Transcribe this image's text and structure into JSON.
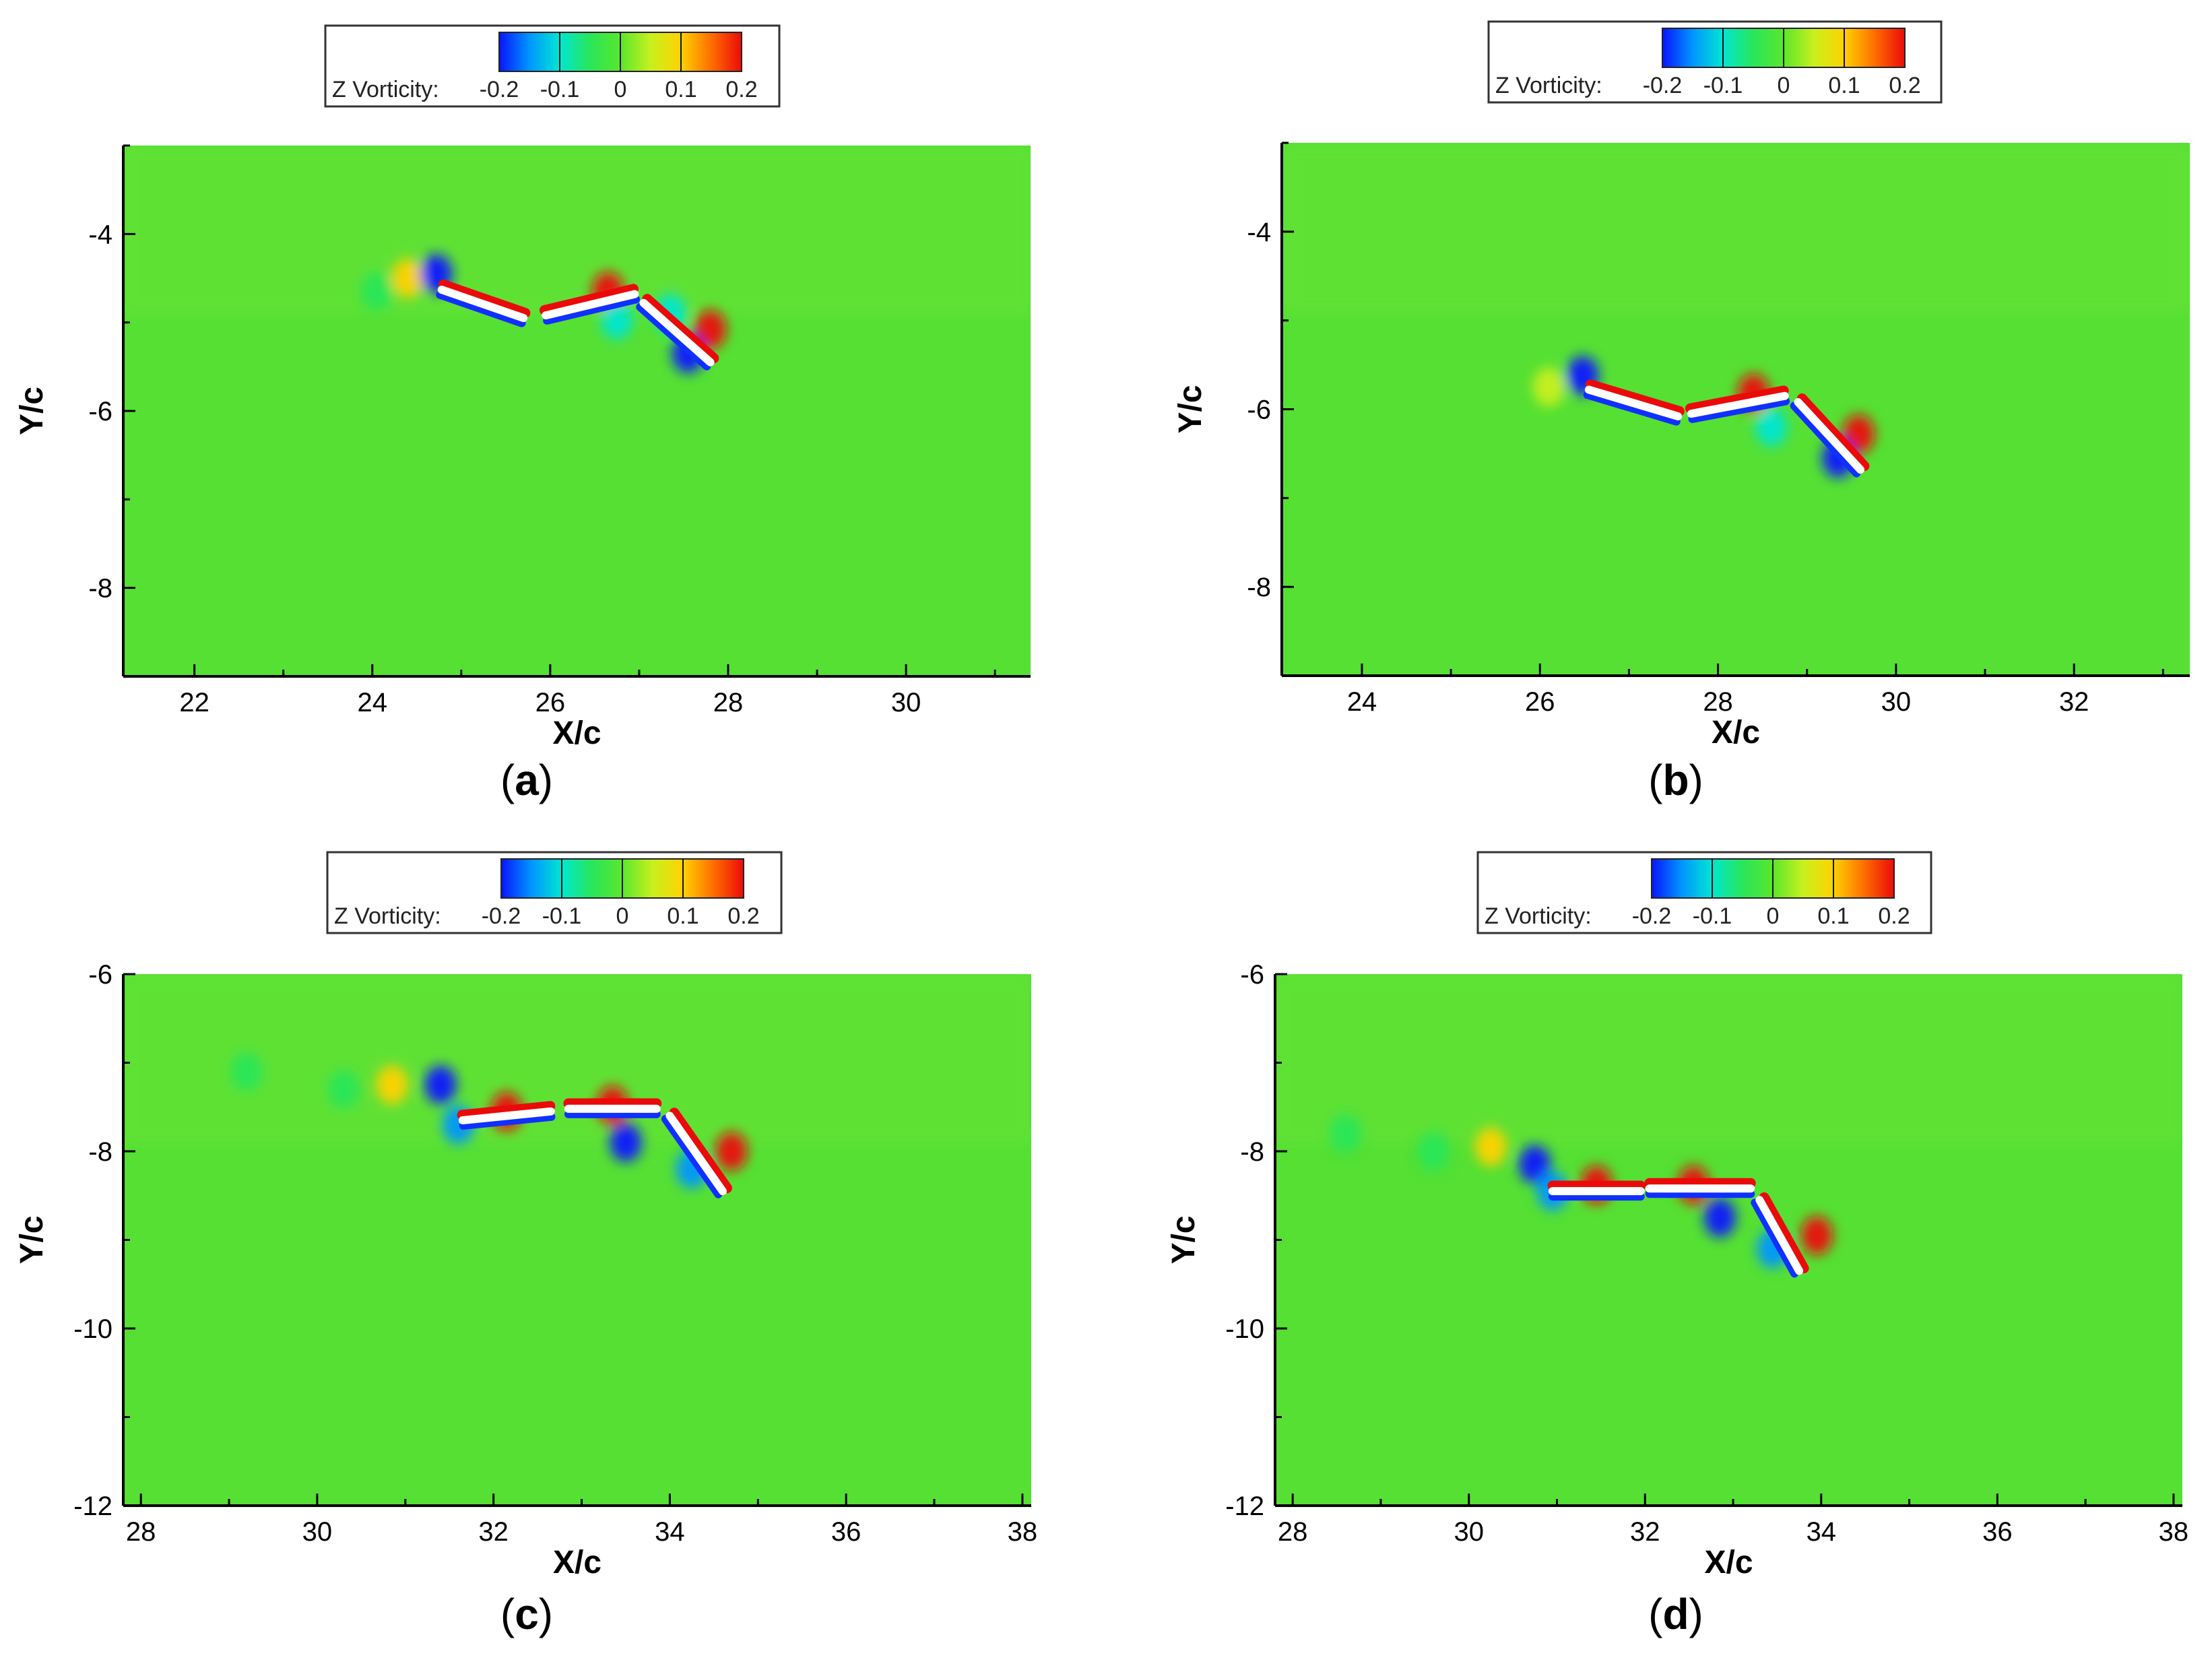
{
  "figure": {
    "colormap": [
      "#0a14ff",
      "#0096ff",
      "#00e6d2",
      "#28e65a",
      "#5ae62d",
      "#c8f01e",
      "#ffd200",
      "#ff6e00",
      "#eb0a0a"
    ],
    "background_color": "#55e033"
  },
  "chart_data": [
    {
      "type": "heatmap",
      "panel_label": "a",
      "xlabel": "X/c",
      "ylabel": "Y/c",
      "xlim": [
        21.2,
        31.4
      ],
      "ylim": [
        -9.0,
        -3.0
      ],
      "xticks": [
        "22",
        "24",
        "26",
        "28",
        "30"
      ],
      "yticks": [
        "-4",
        "-6",
        "-8"
      ],
      "legend": {
        "title": "Z Vorticity:",
        "ticks": [
          "-0.2",
          "-0.1",
          "0",
          "0.1",
          "0.2"
        ],
        "range": [
          -0.2,
          0.2
        ]
      },
      "foils": [
        {
          "x1": 24.78,
          "y1": -4.63,
          "x2": 25.7,
          "y2": -4.95
        },
        {
          "x1": 25.95,
          "y1": -4.92,
          "x2": 26.95,
          "y2": -4.68
        },
        {
          "x1": 27.05,
          "y1": -4.78,
          "x2": 27.8,
          "y2": -5.45
        }
      ],
      "vortices": [
        {
          "x": 24.4,
          "y": -4.5,
          "vorticity": 0.08
        },
        {
          "x": 24.72,
          "y": -4.45,
          "vorticity": -0.2
        },
        {
          "x": 24.05,
          "y": -4.65,
          "vorticity": -0.05
        },
        {
          "x": 26.65,
          "y": -4.65,
          "vorticity": 0.2
        },
        {
          "x": 26.75,
          "y": -4.97,
          "vorticity": -0.12
        },
        {
          "x": 27.35,
          "y": -4.9,
          "vorticity": -0.1
        },
        {
          "x": 27.8,
          "y": -5.08,
          "vorticity": 0.2
        },
        {
          "x": 27.55,
          "y": -5.35,
          "vorticity": -0.2
        }
      ]
    },
    {
      "type": "heatmap",
      "panel_label": "b",
      "xlabel": "X/c",
      "ylabel": "Y/c",
      "xlim": [
        23.1,
        33.3
      ],
      "ylim": [
        -9.0,
        -3.0
      ],
      "xticks": [
        "24",
        "26",
        "28",
        "30",
        "32"
      ],
      "yticks": [
        "-4",
        "-6",
        "-8"
      ],
      "legend": {
        "title": "Z Vorticity:",
        "ticks": [
          "-0.2",
          "-0.1",
          "0",
          "0.1",
          "0.2"
        ],
        "range": [
          -0.2,
          0.2
        ]
      },
      "foils": [
        {
          "x1": 26.55,
          "y1": -5.78,
          "x2": 27.55,
          "y2": -6.08
        },
        {
          "x1": 27.7,
          "y1": -6.05,
          "x2": 28.75,
          "y2": -5.85
        },
        {
          "x1": 28.9,
          "y1": -5.92,
          "x2": 29.6,
          "y2": -6.68
        }
      ],
      "vortices": [
        {
          "x": 26.48,
          "y": -5.62,
          "vorticity": -0.2
        },
        {
          "x": 26.1,
          "y": -5.75,
          "vorticity": 0.05
        },
        {
          "x": 28.4,
          "y": -5.82,
          "vorticity": 0.2
        },
        {
          "x": 28.6,
          "y": -6.2,
          "vorticity": -0.12
        },
        {
          "x": 29.58,
          "y": -6.28,
          "vorticity": 0.2
        },
        {
          "x": 29.35,
          "y": -6.55,
          "vorticity": -0.2
        }
      ]
    },
    {
      "type": "heatmap",
      "panel_label": "c",
      "xlabel": "X/c",
      "ylabel": "Y/c",
      "xlim": [
        27.8,
        38.1
      ],
      "ylim": [
        -12.0,
        -6.0
      ],
      "xticks": [
        "28",
        "30",
        "32",
        "34",
        "36",
        "38"
      ],
      "yticks": [
        "-6",
        "-8",
        "-10",
        "-12"
      ],
      "legend": {
        "title": "Z Vorticity:",
        "ticks": [
          "-0.2",
          "-0.1",
          "0",
          "0.1",
          "0.2"
        ],
        "range": [
          -0.2,
          0.2
        ]
      },
      "foils": [
        {
          "x1": 31.65,
          "y1": -7.65,
          "x2": 32.65,
          "y2": -7.55
        },
        {
          "x1": 32.85,
          "y1": -7.52,
          "x2": 33.85,
          "y2": -7.52
        },
        {
          "x1": 34.0,
          "y1": -7.6,
          "x2": 34.6,
          "y2": -8.45
        }
      ],
      "vortices": [
        {
          "x": 30.85,
          "y": -7.25,
          "vorticity": 0.12
        },
        {
          "x": 31.4,
          "y": -7.25,
          "vorticity": -0.2
        },
        {
          "x": 31.6,
          "y": -7.7,
          "vorticity": -0.15
        },
        {
          "x": 30.3,
          "y": -7.3,
          "vorticity": -0.04
        },
        {
          "x": 29.2,
          "y": -7.1,
          "vorticity": -0.03
        },
        {
          "x": 32.15,
          "y": -7.55,
          "vorticity": 0.2
        },
        {
          "x": 33.35,
          "y": -7.48,
          "vorticity": 0.2
        },
        {
          "x": 33.5,
          "y": -7.9,
          "vorticity": -0.2
        },
        {
          "x": 34.7,
          "y": -8.0,
          "vorticity": 0.2
        },
        {
          "x": 34.25,
          "y": -8.2,
          "vorticity": -0.15
        }
      ]
    },
    {
      "type": "heatmap",
      "panel_label": "d",
      "xlabel": "X/c",
      "ylabel": "Y/c",
      "xlim": [
        27.8,
        38.1
      ],
      "ylim": [
        -12.0,
        -6.0
      ],
      "xticks": [
        "28",
        "30",
        "32",
        "34",
        "36",
        "38"
      ],
      "yticks": [
        "-6",
        "-8",
        "-10",
        "-12"
      ],
      "legend": {
        "title": "Z Vorticity:",
        "ticks": [
          "-0.2",
          "-0.1",
          "0",
          "0.1",
          "0.2"
        ],
        "range": [
          -0.2,
          0.2
        ]
      },
      "foils": [
        {
          "x1": 30.95,
          "y1": -8.45,
          "x2": 31.95,
          "y2": -8.45
        },
        {
          "x1": 32.05,
          "y1": -8.42,
          "x2": 33.2,
          "y2": -8.42
        },
        {
          "x1": 33.3,
          "y1": -8.55,
          "x2": 33.75,
          "y2": -9.35
        }
      ],
      "vortices": [
        {
          "x": 30.25,
          "y": -7.95,
          "vorticity": 0.12
        },
        {
          "x": 30.75,
          "y": -8.15,
          "vorticity": -0.2
        },
        {
          "x": 30.95,
          "y": -8.45,
          "vorticity": -0.15
        },
        {
          "x": 29.6,
          "y": -8.0,
          "vorticity": -0.04
        },
        {
          "x": 28.6,
          "y": -7.8,
          "vorticity": -0.03
        },
        {
          "x": 31.45,
          "y": -8.38,
          "vorticity": 0.2
        },
        {
          "x": 32.55,
          "y": -8.38,
          "vorticity": 0.2
        },
        {
          "x": 32.85,
          "y": -8.75,
          "vorticity": -0.2
        },
        {
          "x": 33.95,
          "y": -8.95,
          "vorticity": 0.2
        },
        {
          "x": 33.45,
          "y": -9.1,
          "vorticity": -0.15
        }
      ]
    }
  ]
}
